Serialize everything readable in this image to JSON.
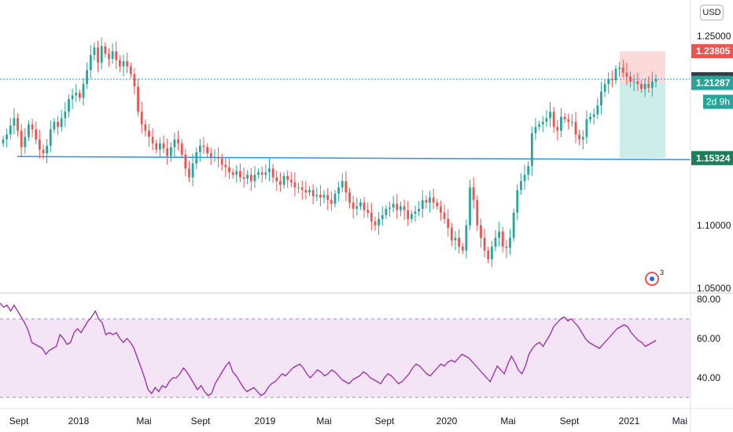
{
  "currency": "USD",
  "alert_count": "3",
  "colors": {
    "up": "#26a69a",
    "down": "#ef5350",
    "level_line": "#2196f3",
    "rsi_line": "#9c27b0",
    "rsi_band": "#f3e5f5",
    "profit_zone": "#c8ebe8",
    "loss_zone": "#fcd6d6",
    "grid": "#f0f3fa"
  },
  "price_axis": {
    "ticks": [
      "1.25000",
      "1.10000",
      "1.05000"
    ]
  },
  "price_badges": {
    "stop": "1.23805",
    "current": "1.21581",
    "entry": "1.21287",
    "countdown": "2d 9h",
    "target": "1.15324"
  },
  "rsi_axis": {
    "ticks": [
      "80.00",
      "60.00",
      "40.00"
    ]
  },
  "time_axis": {
    "labels": [
      "Sept",
      "2018",
      "Mai",
      "Sept",
      "2019",
      "Mai",
      "Sept",
      "2020",
      "Mai",
      "Sept",
      "2021",
      "Mai"
    ]
  },
  "chart_data": [
    {
      "type": "candlestick",
      "title": "",
      "ylim": [
        1.04,
        1.265
      ],
      "horizontal_levels": [
        1.21581,
        1.15324
      ],
      "position_tool": {
        "entry": 1.21287,
        "stop": 1.23805,
        "target": 1.15324
      },
      "series": [
        {
          "values": [
            1.168,
            1.172,
            1.179,
            1.185,
            1.175,
            1.162,
            1.17,
            1.18,
            1.176,
            1.168,
            1.16,
            1.157,
            1.163,
            1.176,
            1.182,
            1.178,
            1.185,
            1.19,
            1.2,
            1.203,
            1.205,
            1.201,
            1.212,
            1.223,
            1.235,
            1.241,
            1.229,
            1.242,
            1.236,
            1.232,
            1.238,
            1.231,
            1.226,
            1.23,
            1.226,
            1.22,
            1.21,
            1.19,
            1.18,
            1.175,
            1.17,
            1.165,
            1.16,
            1.165,
            1.161,
            1.155,
            1.162,
            1.168,
            1.165,
            1.156,
            1.145,
            1.138,
            1.149,
            1.158,
            1.163,
            1.162,
            1.157,
            1.154,
            1.154,
            1.153,
            1.148,
            1.146,
            1.142,
            1.14,
            1.143,
            1.138,
            1.137,
            1.14,
            1.135,
            1.14,
            1.142,
            1.14,
            1.142,
            1.145,
            1.138,
            1.135,
            1.132,
            1.139,
            1.136,
            1.134,
            1.13,
            1.13,
            1.128,
            1.126,
            1.128,
            1.123,
            1.124,
            1.122,
            1.124,
            1.12,
            1.117,
            1.125,
            1.13,
            1.135,
            1.126,
            1.118,
            1.113,
            1.115,
            1.118,
            1.112,
            1.11,
            1.103,
            1.1,
            1.105,
            1.108,
            1.113,
            1.114,
            1.117,
            1.112,
            1.115,
            1.112,
            1.105,
            1.109,
            1.111,
            1.113,
            1.12,
            1.118,
            1.122,
            1.118,
            1.115,
            1.11,
            1.105,
            1.098,
            1.088,
            1.09,
            1.083,
            1.08,
            1.1,
            1.13,
            1.12,
            1.1,
            1.09,
            1.08,
            1.073,
            1.083,
            1.09,
            1.095,
            1.083,
            1.082,
            1.09,
            1.11,
            1.128,
            1.135,
            1.14,
            1.147,
            1.173,
            1.178,
            1.18,
            1.182,
            1.185,
            1.19,
            1.178,
            1.175,
            1.186,
            1.184,
            1.182,
            1.182,
            1.172,
            1.168,
            1.17,
            1.184,
            1.186,
            1.188,
            1.195,
            1.206,
            1.212,
            1.216,
            1.215,
            1.224,
            1.225,
            1.221,
            1.218,
            1.214,
            1.214,
            1.212,
            1.208,
            1.212,
            1.209,
            1.214,
            1.216
          ]
        }
      ]
    },
    {
      "type": "line",
      "title": "",
      "ylim": [
        25,
        82
      ],
      "bands": [
        30,
        70
      ],
      "series": [
        {
          "values": [
            78,
            76,
            77,
            74,
            77,
            74,
            71,
            68,
            64,
            58,
            57,
            56,
            55,
            52,
            54,
            55,
            56,
            62,
            60,
            57,
            58,
            63,
            65,
            63,
            66,
            69,
            71,
            74,
            70,
            68,
            62,
            63,
            62,
            63,
            60,
            58,
            60,
            58,
            55,
            50,
            45,
            40,
            34,
            32,
            35,
            33,
            36,
            35,
            38,
            40,
            40,
            42,
            45,
            43,
            40,
            37,
            34,
            36,
            33,
            31,
            32,
            37,
            40,
            43,
            46,
            48,
            43,
            41,
            38,
            35,
            33,
            34,
            35,
            33,
            31,
            32,
            35,
            37,
            38,
            40,
            42,
            41,
            43,
            45,
            46,
            47,
            45,
            42,
            40,
            42,
            44,
            43,
            41,
            42,
            44,
            43,
            41,
            39,
            38,
            37,
            39,
            40,
            41,
            43,
            42,
            40,
            39,
            38,
            37,
            40,
            42,
            41,
            39,
            37,
            38,
            40,
            42,
            45,
            47,
            46,
            44,
            42,
            41,
            43,
            45,
            47,
            46,
            48,
            49,
            48,
            50,
            52,
            51,
            50,
            48,
            46,
            44,
            42,
            40,
            38,
            42,
            46,
            44,
            42,
            47,
            51,
            48,
            44,
            42,
            46,
            52,
            55,
            57,
            58,
            56,
            59,
            62,
            66,
            68,
            70,
            71,
            69,
            70,
            68,
            66,
            63,
            60,
            58,
            57,
            56,
            55,
            57,
            59,
            61,
            63,
            65,
            66,
            67,
            66,
            63,
            61,
            59,
            58,
            56,
            57,
            58,
            59
          ]
        }
      ]
    }
  ]
}
